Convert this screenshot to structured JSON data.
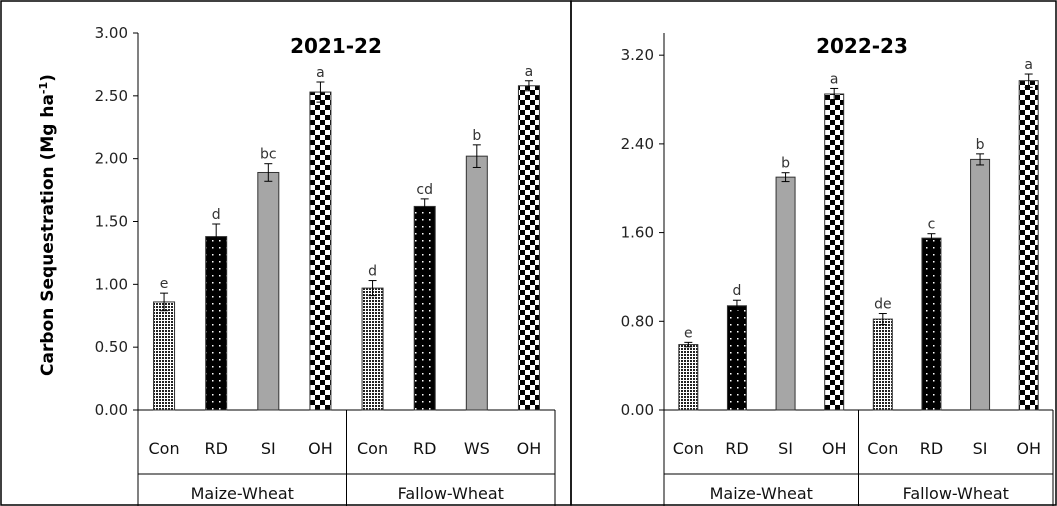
{
  "chart_data": [
    {
      "type": "bar",
      "title": "2021-22",
      "ylabel": "Carbon Sequestration (Mg ha",
      "ylabel_sup": "-1",
      "ylabel_close": ")",
      "ylim": [
        0,
        3.0
      ],
      "yticks": [
        "0.00",
        "0.50",
        "1.00",
        "1.50",
        "2.00",
        "2.50",
        "3.00"
      ],
      "ytick_values": [
        0,
        0.5,
        1.0,
        1.5,
        2.0,
        2.5,
        3.0
      ],
      "groups": [
        {
          "name": "Maize-Wheat",
          "categories": [
            "Con",
            "RD",
            "SI",
            "OH"
          ],
          "values": [
            0.86,
            1.38,
            1.89,
            2.53
          ],
          "errors": [
            0.07,
            0.1,
            0.07,
            0.08
          ],
          "letters": [
            "e",
            "d",
            "bc",
            "a"
          ]
        },
        {
          "name": "Fallow-Wheat",
          "categories": [
            "Con",
            "RD",
            "WS",
            "OH"
          ],
          "values": [
            0.97,
            1.62,
            2.02,
            2.58
          ],
          "errors": [
            0.06,
            0.06,
            0.09,
            0.04
          ],
          "letters": [
            "d",
            "cd",
            "b",
            "a"
          ]
        }
      ]
    },
    {
      "type": "bar",
      "title": "2022-23",
      "ylim": [
        0,
        3.4
      ],
      "yticks": [
        "0.00",
        "0.80",
        "1.60",
        "2.40",
        "3.20"
      ],
      "ytick_values": [
        0,
        0.8,
        1.6,
        2.4,
        3.2
      ],
      "groups": [
        {
          "name": "Maize-Wheat",
          "categories": [
            "Con",
            "RD",
            "SI",
            "OH"
          ],
          "values": [
            0.59,
            0.94,
            2.1,
            2.85
          ],
          "errors": [
            0.02,
            0.05,
            0.04,
            0.05
          ],
          "letters": [
            "e",
            "d",
            "b",
            "a"
          ]
        },
        {
          "name": "Fallow-Wheat",
          "categories": [
            "Con",
            "RD",
            "SI",
            "OH"
          ],
          "values": [
            0.82,
            1.55,
            2.26,
            2.97
          ],
          "errors": [
            0.05,
            0.04,
            0.05,
            0.06
          ],
          "letters": [
            "de",
            "c",
            "b",
            "a"
          ]
        }
      ]
    }
  ],
  "patterns": [
    "dense-dots",
    "sparse-dots-black",
    "solid-gray",
    "checkerboard"
  ],
  "colors": {
    "gray_bar": "#a6a6a6",
    "black": "#000000",
    "panel_border": "#000000"
  }
}
